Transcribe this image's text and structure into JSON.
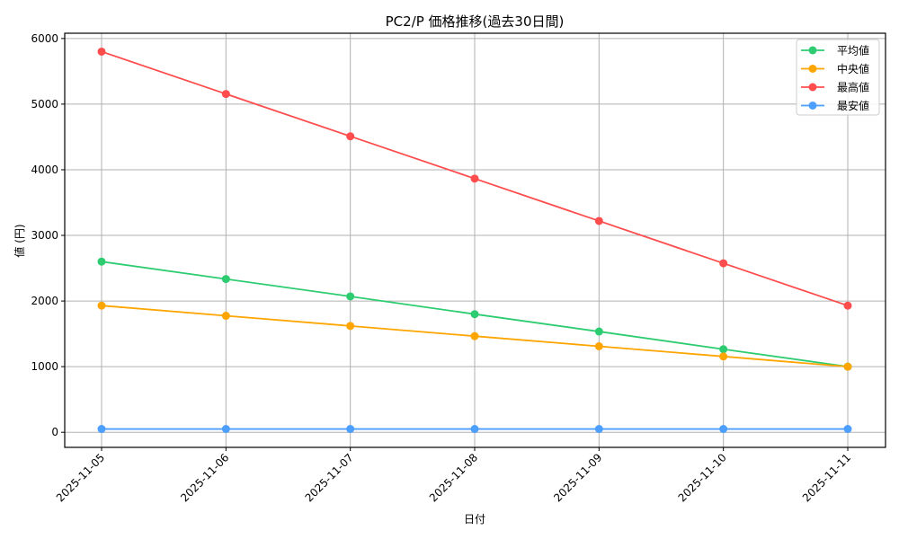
{
  "chart_data": {
    "type": "line",
    "title": "PC2/P 価格推移(過去30日間)",
    "xlabel": "日付",
    "ylabel": "値 (円)",
    "categories": [
      "2025-11-05",
      "2025-11-06",
      "2025-11-07",
      "2025-11-08",
      "2025-11-09",
      "2025-11-10",
      "2025-11-11"
    ],
    "ylim": [
      -230,
      6080
    ],
    "yticks": [
      0,
      1000,
      2000,
      3000,
      4000,
      5000,
      6000
    ],
    "grid": true,
    "legend_position": "top-right",
    "series": [
      {
        "name": "平均値",
        "color": "#2ecc71",
        "values": [
          2600,
          2335,
          2070,
          1800,
          1535,
          1265,
          1000
        ]
      },
      {
        "name": "中央値",
        "color": "#ffa500",
        "values": [
          1930,
          1775,
          1620,
          1465,
          1310,
          1155,
          1000
        ]
      },
      {
        "name": "最高値",
        "color": "#ff4d4d",
        "values": [
          5800,
          5155,
          4510,
          3865,
          3220,
          2575,
          1930
        ]
      },
      {
        "name": "最安値",
        "color": "#4d9fff",
        "values": [
          50,
          50,
          50,
          50,
          50,
          50,
          50
        ]
      }
    ]
  }
}
